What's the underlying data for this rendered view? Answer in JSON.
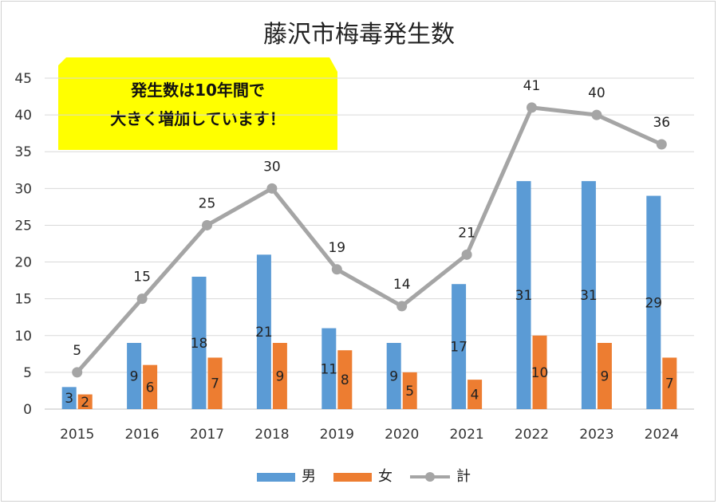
{
  "chart_data": {
    "type": "bar",
    "title": "藤沢市梅毒発生数",
    "categories": [
      "2015",
      "2016",
      "2017",
      "2018",
      "2019",
      "2020",
      "2021",
      "2022",
      "2023",
      "2024"
    ],
    "series": [
      {
        "name": "男",
        "type": "bar",
        "color": "#5b9bd5",
        "values": [
          3,
          9,
          18,
          21,
          11,
          9,
          17,
          31,
          31,
          29
        ]
      },
      {
        "name": "女",
        "type": "bar",
        "color": "#ed7d31",
        "values": [
          2,
          6,
          7,
          9,
          8,
          5,
          4,
          10,
          9,
          7
        ]
      },
      {
        "name": "計",
        "type": "line",
        "color": "#a5a5a5",
        "values": [
          5,
          15,
          25,
          30,
          19,
          14,
          21,
          41,
          40,
          36
        ]
      }
    ],
    "ylim": [
      0,
      45
    ],
    "yticks": [
      "0",
      "5",
      "10",
      "15",
      "20",
      "25",
      "30",
      "35",
      "40",
      "45"
    ],
    "grid": true,
    "legend": "bottom",
    "annotation": {
      "line1": "発生数は10年間で",
      "line2": "大きく増加しています！",
      "color": "#ffff00"
    }
  }
}
